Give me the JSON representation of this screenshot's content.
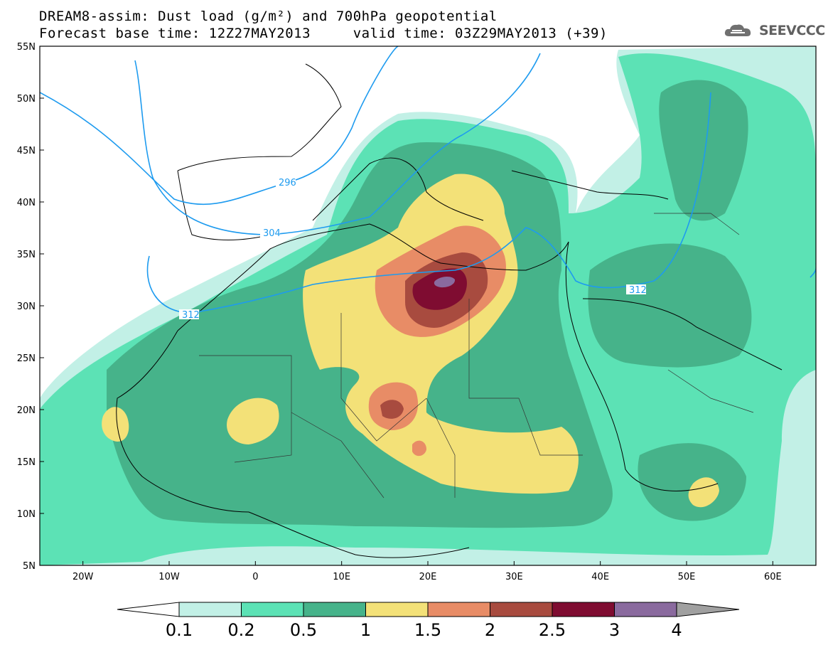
{
  "title": {
    "line1": "DREAM8-assim: Dust load (g/m²) and 700hPa geopotential",
    "line2": "Forecast base time: 12Z27MAY2013     valid time: 03Z29MAY2013 (+39)"
  },
  "logo": {
    "text": "SEEVCCC",
    "icon": "cloud-icon"
  },
  "map": {
    "lon_range": [
      -25,
      65
    ],
    "lat_range": [
      5,
      55
    ],
    "x_ticks": [
      "20W",
      "10W",
      "0",
      "10E",
      "20E",
      "30E",
      "40E",
      "50E",
      "60E"
    ],
    "y_ticks": [
      "55N",
      "50N",
      "45N",
      "40N",
      "35N",
      "30N",
      "25N",
      "20N",
      "15N",
      "10N",
      "5N"
    ],
    "contour_labels": [
      "296",
      "304",
      "312",
      "312"
    ],
    "contour_color": "#1e9bef"
  },
  "colorbar": {
    "labels": [
      "0.1",
      "0.2",
      "0.5",
      "1",
      "1.5",
      "2",
      "2.5",
      "3",
      "4"
    ],
    "colors": [
      "#c2f0e6",
      "#5ce2b5",
      "#46b38a",
      "#f3e178",
      "#e88c66",
      "#a84b3f",
      "#7f0c31",
      "#8a6a9e",
      "#a0a0a0"
    ]
  }
}
